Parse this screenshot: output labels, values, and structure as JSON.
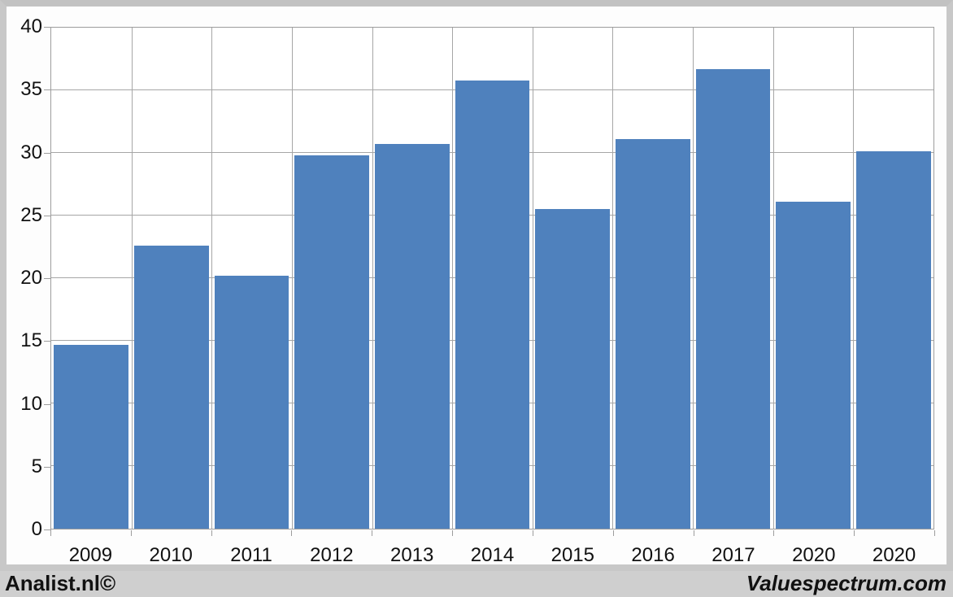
{
  "chart_data": {
    "type": "bar",
    "title": "",
    "xlabel": "",
    "ylabel": "",
    "categories": [
      "2009",
      "2010",
      "2011",
      "2012",
      "2013",
      "2014",
      "2015",
      "2016",
      "2017",
      "2020",
      "2020"
    ],
    "values": [
      14.7,
      22.6,
      20.2,
      29.8,
      30.7,
      35.8,
      25.5,
      31.1,
      36.7,
      26.1,
      30.1
    ],
    "ylim": [
      0,
      40
    ],
    "yticks": [
      0,
      5,
      10,
      15,
      20,
      25,
      30,
      35,
      40
    ],
    "grid": "horizontal-and-vertical",
    "legend": "none",
    "bar_color": "#4f81bd",
    "gridline_color": "#a6a6a6",
    "plot_background": "#ffffff",
    "chart_background": "#fdfdfd",
    "frame_color": "#c8c8c8",
    "axis_text_color": "#111111"
  },
  "footer": {
    "left_text": "Analist.nl©",
    "right_text": "Valuespectrum.com",
    "background": "#cfcfcf"
  }
}
